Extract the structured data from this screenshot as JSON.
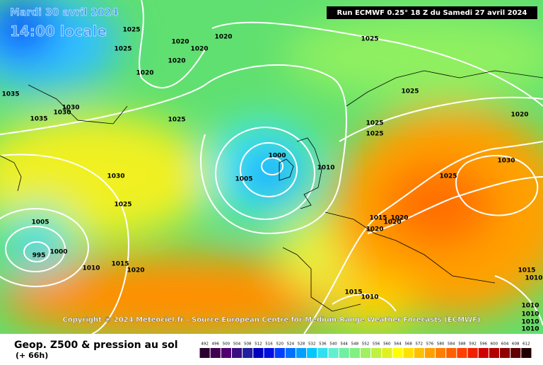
{
  "header": {
    "date": "Mardi 30 avril 2024",
    "time": "14:00 locale",
    "run": "Run ECMWF 0.25° 18 Z du Samedi 27 avril 2024"
  },
  "copyright": "Copyright © 2024 Meteociel.fr - Source European Centre for Medium-Range Weather Forecasts (ECMWF)",
  "isobar_labels": [
    "1025",
    "1025",
    "1020",
    "1020",
    "1020",
    "1020",
    "1020",
    "1025",
    "1035",
    "1030",
    "1030",
    "1035",
    "1025",
    "1025",
    "1025",
    "1025",
    "1020",
    "1000",
    "1010",
    "1005",
    "1030",
    "1025",
    "1025",
    "1030",
    "1005",
    "1020",
    "1020",
    "1015",
    "1020",
    "1000",
    "995",
    "1015",
    "1010",
    "1020",
    "1015",
    "1010",
    "1015",
    "1010",
    "1010",
    "1010",
    "1010",
    "1010"
  ],
  "footer": {
    "title": "Geop. Z500 & pression au sol",
    "lead": "(+ 66h)"
  },
  "colorbar": {
    "labels": [
      "492",
      "496",
      "500",
      "504",
      "508",
      "512",
      "516",
      "520",
      "524",
      "528",
      "532",
      "536",
      "540",
      "544",
      "548",
      "552",
      "556",
      "560",
      "564",
      "568",
      "572",
      "576",
      "580",
      "584",
      "588",
      "592",
      "596",
      "600",
      "604",
      "608",
      "612"
    ],
    "colors": [
      "#2b0030",
      "#400050",
      "#500070",
      "#3a1080",
      "#2020a0",
      "#0000c0",
      "#0010e0",
      "#0040ff",
      "#0070ff",
      "#00a0ff",
      "#00c8ff",
      "#30e0f0",
      "#60f0d0",
      "#70f0a0",
      "#80f080",
      "#a0f060",
      "#c0f040",
      "#e0f020",
      "#ffff00",
      "#ffe000",
      "#ffc000",
      "#ffa000",
      "#ff8000",
      "#ff6000",
      "#ff4000",
      "#f02000",
      "#d00000",
      "#b00000",
      "#900000",
      "#600000",
      "#200000"
    ]
  }
}
